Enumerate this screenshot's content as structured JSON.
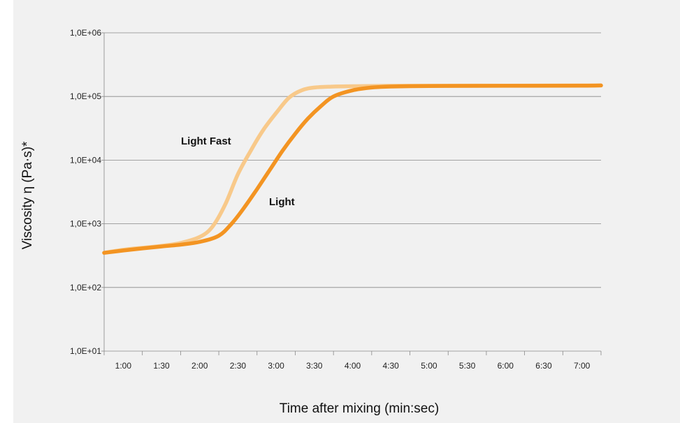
{
  "chart_data": {
    "type": "line",
    "title": "",
    "xlabel": "Time after mixing (min:sec)",
    "ylabel": "Viscosity η (Pa·s)*",
    "y_scale": "log",
    "ylim": [
      10,
      1000000
    ],
    "y_ticks": [
      10,
      100,
      1000,
      10000,
      100000,
      1000000
    ],
    "y_tick_labels": [
      "1,0E+01",
      "1,0E+02",
      "1,0E+03",
      "1,0E+04",
      "1,0E+05",
      "1,0E+06"
    ],
    "x_unit": "min:sec",
    "xlim": [
      "0:45",
      "7:15"
    ],
    "x_ticks": [
      "1:00",
      "1:30",
      "2:00",
      "2:30",
      "3:00",
      "3:30",
      "4:00",
      "4:30",
      "5:00",
      "5:30",
      "6:00",
      "6:30",
      "7:00"
    ],
    "grid": true,
    "colors": {
      "light_fast": "#f8c98a",
      "light": "#f39422",
      "grid": "#888888",
      "background": "#f1f1f1"
    },
    "series": [
      {
        "name": "Light Fast",
        "color": "#f8c98a",
        "x": [
          "0:45",
          "1:00",
          "1:15",
          "1:30",
          "1:45",
          "2:00",
          "2:10",
          "2:20",
          "2:30",
          "2:40",
          "2:50",
          "3:00",
          "3:10",
          "3:20",
          "3:30",
          "3:45",
          "4:00",
          "4:30",
          "5:00",
          "6:00",
          "7:00",
          "7:15"
        ],
        "y": [
          350,
          390,
          420,
          450,
          500,
          620,
          900,
          2000,
          6000,
          14000,
          30000,
          55000,
          95000,
          125000,
          138000,
          143000,
          145000,
          147000,
          148000,
          148000,
          149000,
          149000
        ]
      },
      {
        "name": "Light",
        "color": "#f39422",
        "x": [
          "0:45",
          "1:00",
          "1:15",
          "1:30",
          "1:45",
          "2:00",
          "2:15",
          "2:25",
          "2:35",
          "2:45",
          "2:55",
          "3:05",
          "3:15",
          "3:25",
          "3:35",
          "3:45",
          "4:00",
          "4:15",
          "4:30",
          "5:00",
          "6:00",
          "7:00",
          "7:15"
        ],
        "y": [
          350,
          380,
          410,
          440,
          470,
          520,
          650,
          1000,
          1800,
          3500,
          7000,
          14000,
          26000,
          45000,
          70000,
          100000,
          125000,
          138000,
          143000,
          146000,
          147000,
          148000,
          149000
        ]
      }
    ],
    "annotations": [
      {
        "text": "Light Fast",
        "series": "Light Fast"
      },
      {
        "text": "Light",
        "series": "Light"
      }
    ]
  }
}
